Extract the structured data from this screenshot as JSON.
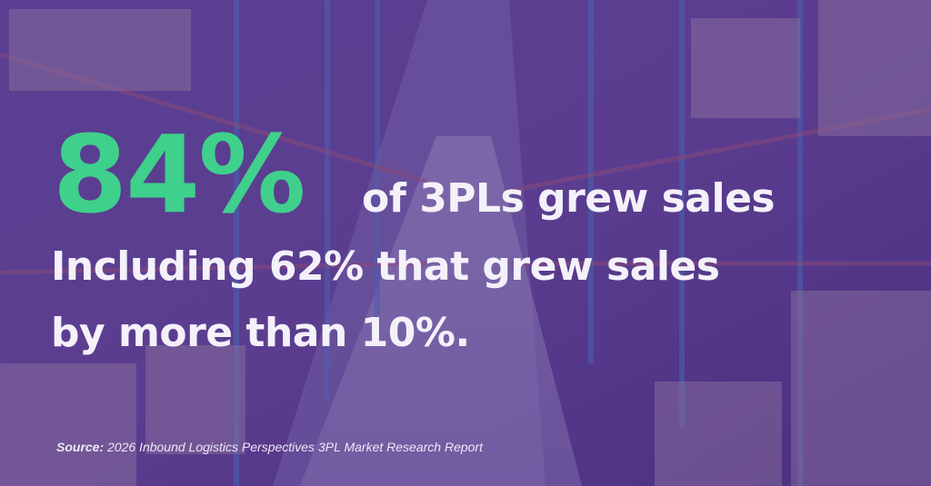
{
  "headline": {
    "stat": "84%",
    "text": "of 3PLs grew sales"
  },
  "detail": {
    "lines": [
      "Including 62% that grew sales",
      "by more than 10%."
    ]
  },
  "source": {
    "label": "Source:",
    "text": "2026 Inbound Logistics Perspectives 3PL Market Research Report"
  }
}
